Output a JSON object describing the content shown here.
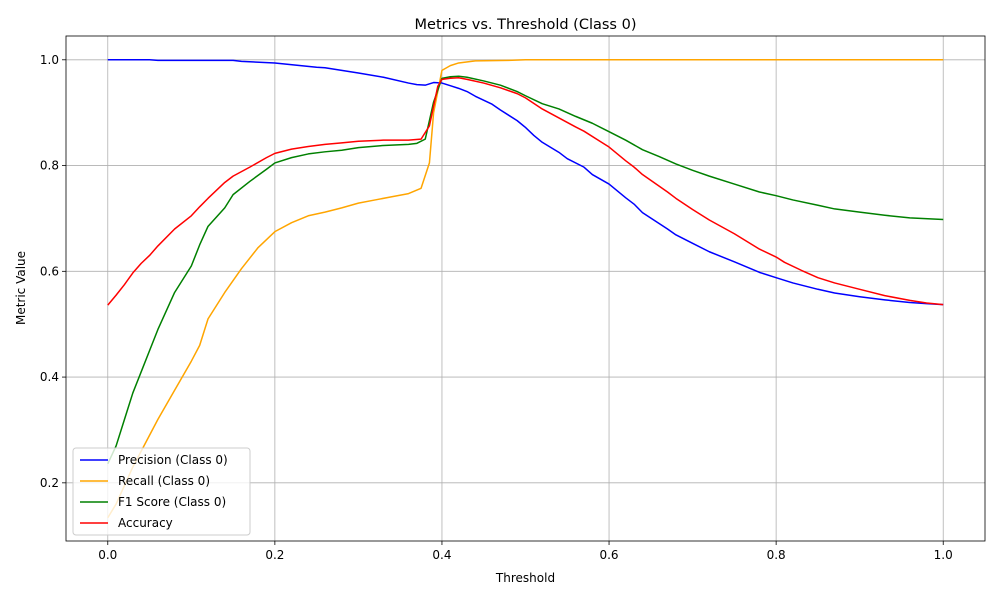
{
  "chart_data": {
    "type": "line",
    "title": "Metrics vs. Threshold (Class 0)",
    "xlabel": "Threshold",
    "ylabel": "Metric Value",
    "xlim": [
      -0.05,
      1.05
    ],
    "ylim": [
      0.09,
      1.045
    ],
    "xticks": [
      "0.0",
      "0.2",
      "0.4",
      "0.6",
      "0.8",
      "1.0"
    ],
    "yticks": [
      "0.2",
      "0.4",
      "0.6",
      "0.8",
      "1.0"
    ],
    "grid": true,
    "legend_position": "lower-left",
    "series": [
      {
        "name": "Precision (Class 0)",
        "color": "#0000ff",
        "points": [
          [
            0.0,
            1.0
          ],
          [
            0.05,
            1.0
          ],
          [
            0.06,
            0.999
          ],
          [
            0.1,
            0.999
          ],
          [
            0.15,
            0.999
          ],
          [
            0.16,
            0.997
          ],
          [
            0.2,
            0.994
          ],
          [
            0.25,
            0.986
          ],
          [
            0.26,
            0.985
          ],
          [
            0.3,
            0.975
          ],
          [
            0.33,
            0.967
          ],
          [
            0.36,
            0.956
          ],
          [
            0.37,
            0.953
          ],
          [
            0.38,
            0.952
          ],
          [
            0.39,
            0.957
          ],
          [
            0.4,
            0.956
          ],
          [
            0.41,
            0.951
          ],
          [
            0.42,
            0.946
          ],
          [
            0.43,
            0.94
          ],
          [
            0.44,
            0.931
          ],
          [
            0.46,
            0.916
          ],
          [
            0.47,
            0.905
          ],
          [
            0.49,
            0.885
          ],
          [
            0.5,
            0.872
          ],
          [
            0.51,
            0.857
          ],
          [
            0.52,
            0.844
          ],
          [
            0.54,
            0.825
          ],
          [
            0.55,
            0.813
          ],
          [
            0.57,
            0.797
          ],
          [
            0.58,
            0.783
          ],
          [
            0.6,
            0.765
          ],
          [
            0.62,
            0.739
          ],
          [
            0.63,
            0.727
          ],
          [
            0.64,
            0.711
          ],
          [
            0.67,
            0.68
          ],
          [
            0.68,
            0.669
          ],
          [
            0.7,
            0.653
          ],
          [
            0.72,
            0.637
          ],
          [
            0.75,
            0.618
          ],
          [
            0.78,
            0.598
          ],
          [
            0.8,
            0.588
          ],
          [
            0.82,
            0.578
          ],
          [
            0.85,
            0.566
          ],
          [
            0.87,
            0.559
          ],
          [
            0.9,
            0.552
          ],
          [
            0.93,
            0.546
          ],
          [
            0.96,
            0.541
          ],
          [
            0.98,
            0.539
          ],
          [
            1.0,
            0.537
          ]
        ]
      },
      {
        "name": "Recall (Class 0)",
        "color": "#ffa500",
        "points": [
          [
            0.0,
            0.134
          ],
          [
            0.01,
            0.16
          ],
          [
            0.03,
            0.23
          ],
          [
            0.05,
            0.29
          ],
          [
            0.06,
            0.32
          ],
          [
            0.08,
            0.375
          ],
          [
            0.1,
            0.43
          ],
          [
            0.11,
            0.46
          ],
          [
            0.12,
            0.51
          ],
          [
            0.14,
            0.56
          ],
          [
            0.16,
            0.605
          ],
          [
            0.18,
            0.645
          ],
          [
            0.2,
            0.675
          ],
          [
            0.22,
            0.692
          ],
          [
            0.24,
            0.705
          ],
          [
            0.26,
            0.712
          ],
          [
            0.28,
            0.72
          ],
          [
            0.3,
            0.729
          ],
          [
            0.32,
            0.735
          ],
          [
            0.34,
            0.741
          ],
          [
            0.36,
            0.747
          ],
          [
            0.375,
            0.757
          ],
          [
            0.385,
            0.805
          ],
          [
            0.39,
            0.9
          ],
          [
            0.4,
            0.98
          ],
          [
            0.41,
            0.989
          ],
          [
            0.42,
            0.994
          ],
          [
            0.44,
            0.998
          ],
          [
            0.48,
            0.999
          ],
          [
            0.5,
            1.0
          ],
          [
            1.0,
            1.0
          ]
        ]
      },
      {
        "name": "F1 Score (Class 0)",
        "color": "#008000",
        "points": [
          [
            0.0,
            0.236
          ],
          [
            0.01,
            0.27
          ],
          [
            0.02,
            0.32
          ],
          [
            0.03,
            0.37
          ],
          [
            0.04,
            0.41
          ],
          [
            0.05,
            0.45
          ],
          [
            0.06,
            0.49
          ],
          [
            0.08,
            0.56
          ],
          [
            0.1,
            0.61
          ],
          [
            0.11,
            0.65
          ],
          [
            0.12,
            0.685
          ],
          [
            0.14,
            0.72
          ],
          [
            0.15,
            0.745
          ],
          [
            0.17,
            0.77
          ],
          [
            0.19,
            0.793
          ],
          [
            0.2,
            0.805
          ],
          [
            0.22,
            0.815
          ],
          [
            0.24,
            0.822
          ],
          [
            0.26,
            0.826
          ],
          [
            0.28,
            0.829
          ],
          [
            0.3,
            0.834
          ],
          [
            0.33,
            0.838
          ],
          [
            0.36,
            0.84
          ],
          [
            0.37,
            0.842
          ],
          [
            0.38,
            0.85
          ],
          [
            0.39,
            0.92
          ],
          [
            0.4,
            0.965
          ],
          [
            0.41,
            0.968
          ],
          [
            0.42,
            0.969
          ],
          [
            0.43,
            0.967
          ],
          [
            0.45,
            0.96
          ],
          [
            0.47,
            0.952
          ],
          [
            0.49,
            0.94
          ],
          [
            0.5,
            0.932
          ],
          [
            0.52,
            0.917
          ],
          [
            0.54,
            0.907
          ],
          [
            0.56,
            0.893
          ],
          [
            0.58,
            0.88
          ],
          [
            0.6,
            0.864
          ],
          [
            0.62,
            0.848
          ],
          [
            0.64,
            0.83
          ],
          [
            0.66,
            0.817
          ],
          [
            0.68,
            0.803
          ],
          [
            0.7,
            0.791
          ],
          [
            0.72,
            0.78
          ],
          [
            0.75,
            0.765
          ],
          [
            0.78,
            0.75
          ],
          [
            0.8,
            0.743
          ],
          [
            0.82,
            0.735
          ],
          [
            0.85,
            0.725
          ],
          [
            0.87,
            0.718
          ],
          [
            0.9,
            0.712
          ],
          [
            0.93,
            0.706
          ],
          [
            0.96,
            0.701
          ],
          [
            1.0,
            0.698
          ]
        ]
      },
      {
        "name": "Accuracy",
        "color": "#ff0000",
        "points": [
          [
            0.0,
            0.536
          ],
          [
            0.01,
            0.555
          ],
          [
            0.02,
            0.575
          ],
          [
            0.03,
            0.597
          ],
          [
            0.04,
            0.615
          ],
          [
            0.05,
            0.63
          ],
          [
            0.06,
            0.648
          ],
          [
            0.08,
            0.68
          ],
          [
            0.1,
            0.705
          ],
          [
            0.11,
            0.722
          ],
          [
            0.12,
            0.738
          ],
          [
            0.14,
            0.768
          ],
          [
            0.15,
            0.78
          ],
          [
            0.17,
            0.797
          ],
          [
            0.19,
            0.815
          ],
          [
            0.2,
            0.823
          ],
          [
            0.22,
            0.831
          ],
          [
            0.24,
            0.836
          ],
          [
            0.26,
            0.84
          ],
          [
            0.28,
            0.843
          ],
          [
            0.3,
            0.846
          ],
          [
            0.33,
            0.848
          ],
          [
            0.36,
            0.848
          ],
          [
            0.375,
            0.85
          ],
          [
            0.385,
            0.875
          ],
          [
            0.395,
            0.95
          ],
          [
            0.4,
            0.963
          ],
          [
            0.41,
            0.965
          ],
          [
            0.42,
            0.966
          ],
          [
            0.43,
            0.963
          ],
          [
            0.45,
            0.956
          ],
          [
            0.47,
            0.947
          ],
          [
            0.49,
            0.936
          ],
          [
            0.5,
            0.928
          ],
          [
            0.52,
            0.907
          ],
          [
            0.54,
            0.89
          ],
          [
            0.56,
            0.873
          ],
          [
            0.57,
            0.865
          ],
          [
            0.59,
            0.845
          ],
          [
            0.6,
            0.835
          ],
          [
            0.62,
            0.809
          ],
          [
            0.63,
            0.797
          ],
          [
            0.64,
            0.783
          ],
          [
            0.67,
            0.75
          ],
          [
            0.68,
            0.738
          ],
          [
            0.7,
            0.717
          ],
          [
            0.72,
            0.697
          ],
          [
            0.75,
            0.671
          ],
          [
            0.78,
            0.642
          ],
          [
            0.8,
            0.627
          ],
          [
            0.81,
            0.617
          ],
          [
            0.83,
            0.602
          ],
          [
            0.85,
            0.588
          ],
          [
            0.87,
            0.578
          ],
          [
            0.9,
            0.566
          ],
          [
            0.93,
            0.554
          ],
          [
            0.96,
            0.545
          ],
          [
            0.98,
            0.54
          ],
          [
            1.0,
            0.537
          ]
        ]
      }
    ]
  }
}
